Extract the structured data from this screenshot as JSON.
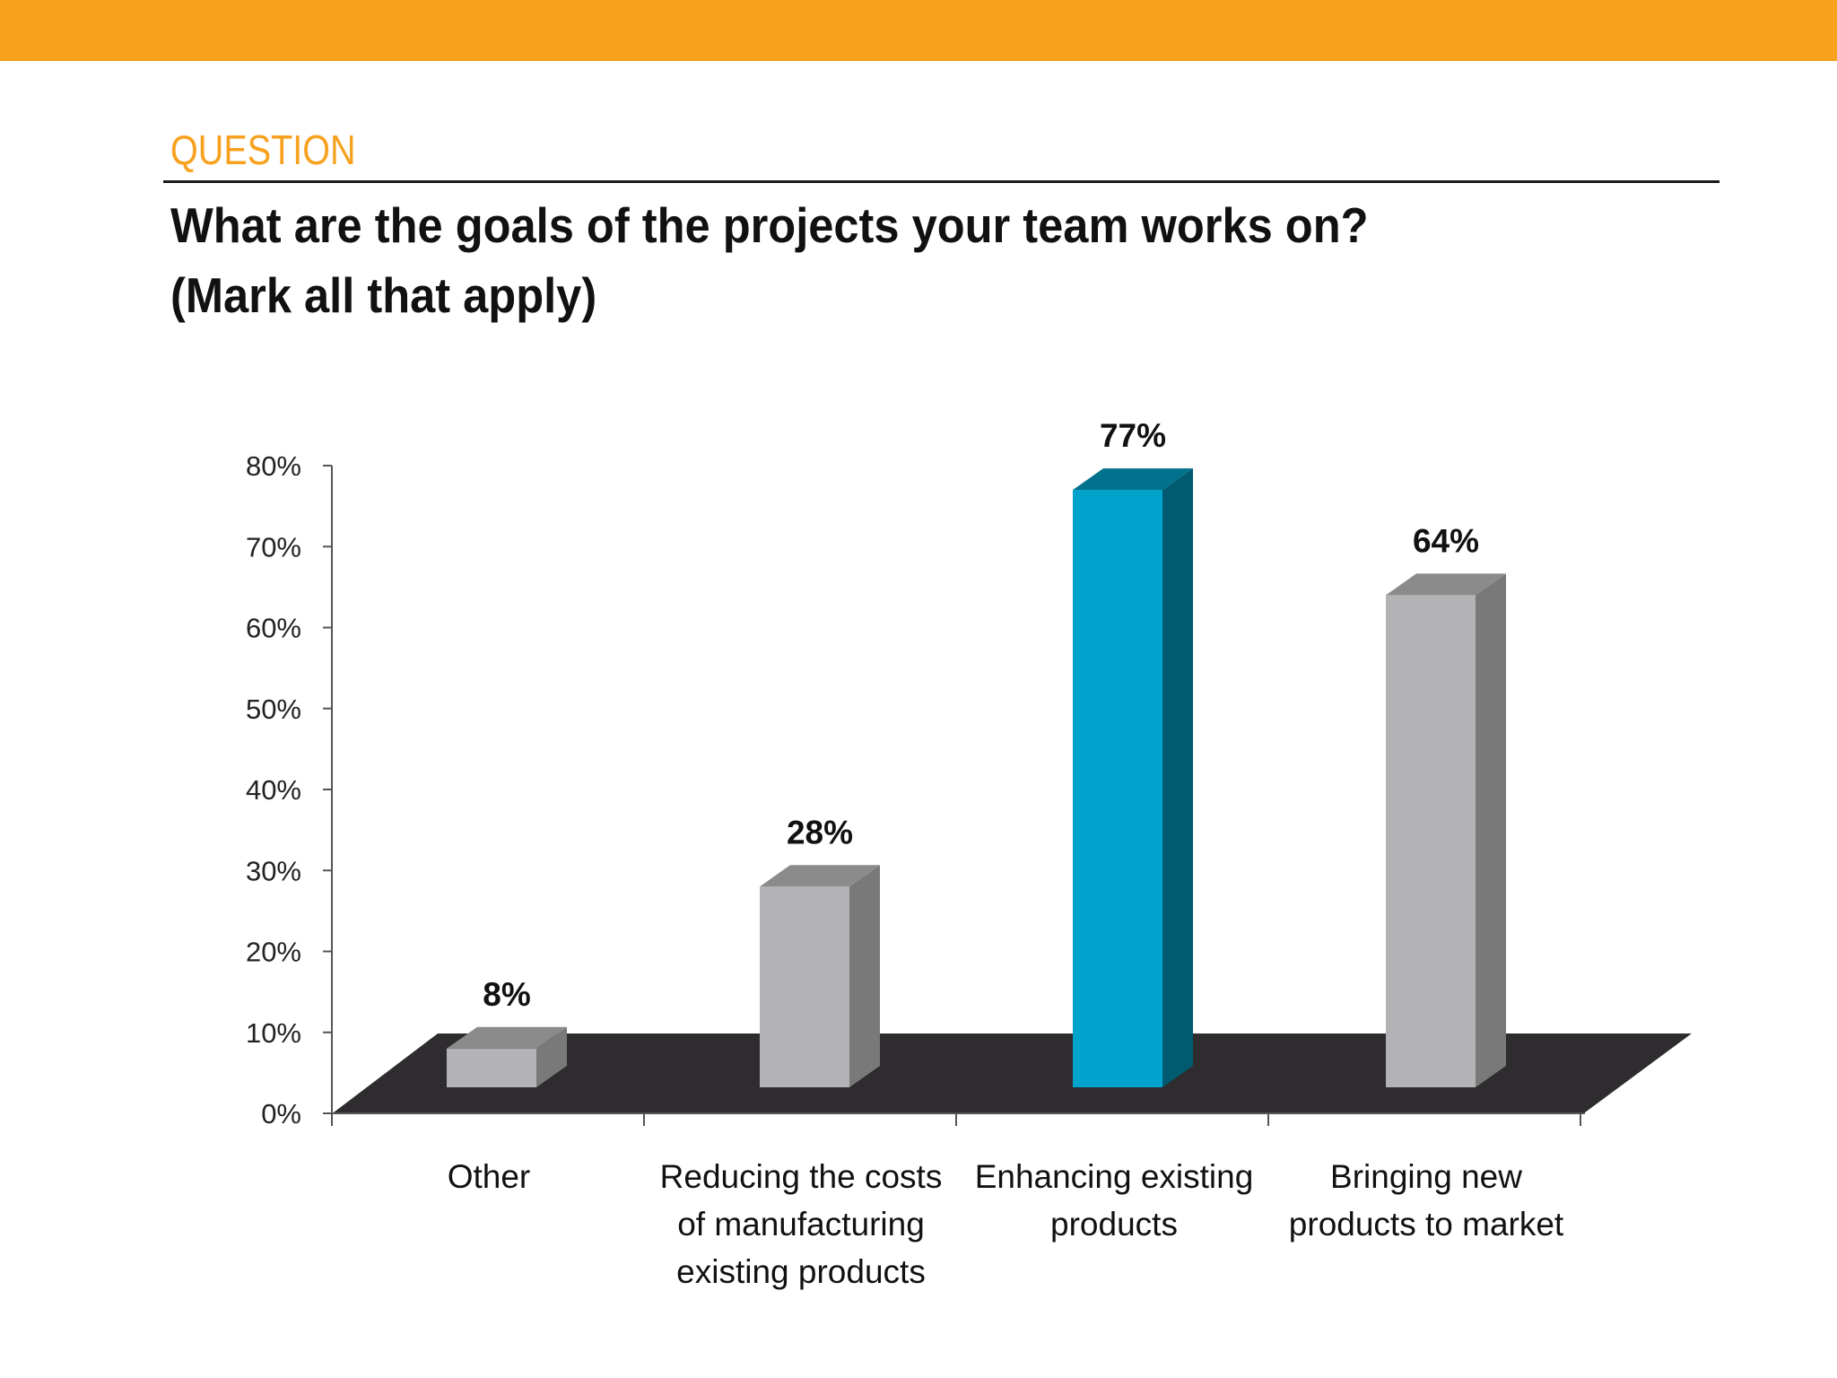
{
  "header": {
    "kicker": "QUESTION",
    "question_line1": "What are the goals of the projects your team works on?",
    "question_line2": "(Mark all that apply)"
  },
  "colors": {
    "accent": "#F7A11F",
    "highlight_bar": "#00A3CB",
    "bar": "#B3B2B4",
    "floor": "#2E2C2E"
  },
  "chart_data": {
    "type": "bar",
    "categories": [
      [
        "Other"
      ],
      [
        "Reducing the costs",
        "of manufacturing",
        "existing products"
      ],
      [
        "Enhancing existing",
        "products"
      ],
      [
        "Bringing new",
        "products to market"
      ]
    ],
    "values": [
      8,
      28,
      77,
      64
    ],
    "data_labels": [
      "8%",
      "28%",
      "77%",
      "64%"
    ],
    "highlight_index": 2,
    "ylim": [
      0,
      80
    ],
    "yticks": [
      0,
      10,
      20,
      30,
      40,
      50,
      60,
      70,
      80
    ],
    "ytick_labels": [
      "0%",
      "10%",
      "20%",
      "30%",
      "40%",
      "50%",
      "60%",
      "70%",
      "80%"
    ],
    "title": "",
    "xlabel": "",
    "ylabel": "",
    "grid": false,
    "legend": "none",
    "style": "3d"
  }
}
